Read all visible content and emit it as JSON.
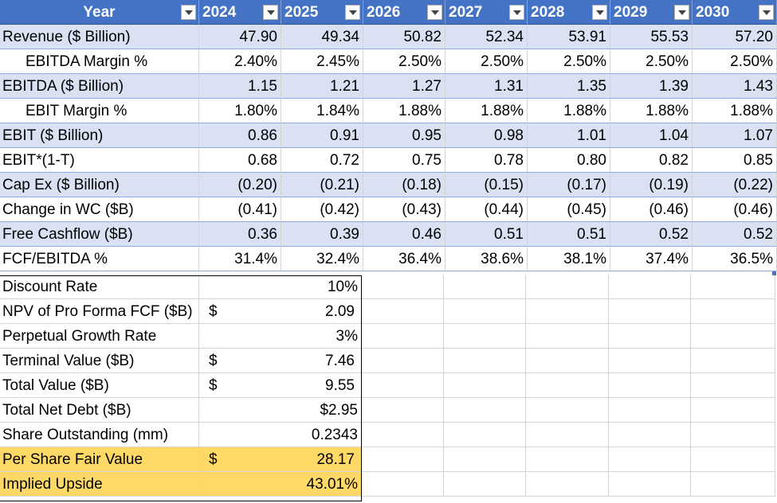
{
  "header": {
    "label": "Year",
    "years": [
      "2024",
      "2025",
      "2026",
      "2027",
      "2028",
      "2029",
      "2030"
    ]
  },
  "table": [
    {
      "label": "Revenue ($ Billion)",
      "indent": false,
      "values": [
        "47.90",
        "49.34",
        "50.82",
        "52.34",
        "53.91",
        "55.53",
        "57.20"
      ]
    },
    {
      "label": "EBITDA Margin %",
      "indent": true,
      "values": [
        "2.40%",
        "2.45%",
        "2.50%",
        "2.50%",
        "2.50%",
        "2.50%",
        "2.50%"
      ]
    },
    {
      "label": "EBITDA ($ Billion)",
      "indent": false,
      "values": [
        "1.15",
        "1.21",
        "1.27",
        "1.31",
        "1.35",
        "1.39",
        "1.43"
      ]
    },
    {
      "label": "EBIT Margin %",
      "indent": true,
      "values": [
        "1.80%",
        "1.84%",
        "1.88%",
        "1.88%",
        "1.88%",
        "1.88%",
        "1.88%"
      ]
    },
    {
      "label": "EBIT ($ Billion)",
      "indent": false,
      "values": [
        "0.86",
        "0.91",
        "0.95",
        "0.98",
        "1.01",
        "1.04",
        "1.07"
      ]
    },
    {
      "label": "EBIT*(1-T)",
      "indent": false,
      "values": [
        "0.68",
        "0.72",
        "0.75",
        "0.78",
        "0.80",
        "0.82",
        "0.85"
      ]
    },
    {
      "label": "Cap Ex ($ Billion)",
      "indent": false,
      "values": [
        "(0.20)",
        "(0.21)",
        "(0.18)",
        "(0.15)",
        "(0.17)",
        "(0.19)",
        "(0.22)"
      ]
    },
    {
      "label": "Change in WC ($B)",
      "indent": false,
      "values": [
        "(0.41)",
        "(0.42)",
        "(0.43)",
        "(0.44)",
        "(0.45)",
        "(0.46)",
        "(0.46)"
      ]
    },
    {
      "label": "Free Cashflow ($B)",
      "indent": false,
      "values": [
        "0.36",
        "0.39",
        "0.46",
        "0.51",
        "0.51",
        "0.52",
        "0.52"
      ]
    },
    {
      "label": "FCF/EBITDA %",
      "indent": false,
      "values": [
        "31.4%",
        "32.4%",
        "36.4%",
        "38.6%",
        "38.1%",
        "37.4%",
        "36.5%"
      ]
    }
  ],
  "summary": [
    {
      "label": "Discount Rate",
      "symbol": "",
      "value": "10%",
      "highlight": false
    },
    {
      "label": "NPV of Pro Forma FCF ($B)",
      "symbol": "$",
      "value": "2.09",
      "highlight": false
    },
    {
      "label": "Perpetual Growth Rate",
      "symbol": "",
      "value": "3%",
      "highlight": false
    },
    {
      "label": "Terminal Value ($B)",
      "symbol": "$",
      "value": "7.46",
      "highlight": false
    },
    {
      "label": "Total Value ($B)",
      "symbol": "$",
      "value": "9.55",
      "highlight": false
    },
    {
      "label": "Total Net Debt ($B)",
      "symbol": "",
      "value": "$2.95",
      "highlight": false
    },
    {
      "label": "Share Outstanding (mm)",
      "symbol": "",
      "value": "0.2343",
      "highlight": false
    },
    {
      "label": "Per Share Fair Value",
      "symbol": "$",
      "value": "28.17",
      "highlight": true
    },
    {
      "label": "Implied Upside",
      "symbol": "",
      "value": "43.01%",
      "highlight": true
    }
  ],
  "colors": {
    "header_bg": "#4472c4",
    "band_bg": "#d9e1f2",
    "highlight_bg": "#ffd966"
  }
}
